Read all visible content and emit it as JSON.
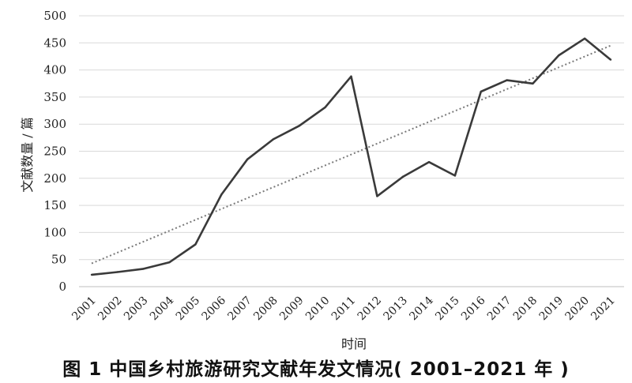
{
  "figure": {
    "caption": "图 1 中国乡村旅游研究文献年发文情况( 2001–2021 年 )"
  },
  "colors": {
    "line": "#3a3a3a",
    "trend": "#7a7a7a",
    "grid": "#d9d9d9"
  },
  "chart_data": {
    "type": "line",
    "title": "",
    "xlabel": "时间",
    "ylabel": "文献数量 / 篇",
    "categories": [
      "2001",
      "2002",
      "2003",
      "2004",
      "2005",
      "2006",
      "2007",
      "2008",
      "2009",
      "2010",
      "2011",
      "2012",
      "2013",
      "2014",
      "2015",
      "2016",
      "2017",
      "2018",
      "2019",
      "2020",
      "2021"
    ],
    "series": [
      {
        "values": [
          22,
          27,
          33,
          45,
          78,
          170,
          235,
          272,
          297,
          331,
          388,
          167,
          203,
          230,
          205,
          360,
          381,
          375,
          427,
          458,
          419
        ]
      }
    ],
    "trendline": {
      "type": "linear",
      "style": "dotted"
    },
    "ylim": [
      0,
      500
    ],
    "yticks": [
      0,
      50,
      100,
      150,
      200,
      250,
      300,
      350,
      400,
      450,
      500
    ],
    "grid": "horizontal",
    "legend": "none"
  }
}
